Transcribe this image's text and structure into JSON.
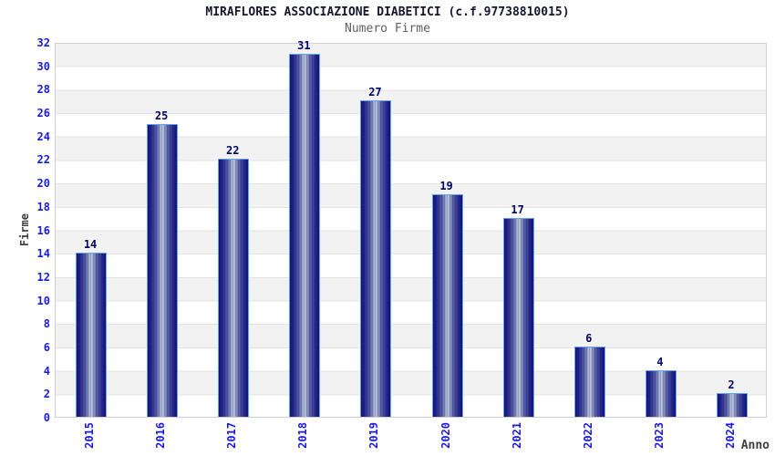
{
  "header": {
    "title": "MIRAFLORES ASSOCIAZIONE DIABETICI (c.f.97738810015)",
    "subtitle": "Numero Firme"
  },
  "chart_data": {
    "type": "bar",
    "title": "MIRAFLORES ASSOCIAZIONE DIABETICI (c.f.97738810015)",
    "subtitle": "Numero Firme",
    "xlabel": "Anno",
    "ylabel": "Firme",
    "categories": [
      "2015",
      "2016",
      "2017",
      "2018",
      "2019",
      "2020",
      "2021",
      "2022",
      "2023",
      "2024"
    ],
    "values": [
      14,
      25,
      22,
      31,
      27,
      19,
      17,
      6,
      4,
      2
    ],
    "ylim": [
      0,
      32
    ],
    "ytick_step": 2,
    "grid": "horizontal-bands",
    "legend": "none",
    "colors": {
      "bar_dark": "#13137a",
      "bar_light": "#b7bfdb",
      "bar_border": "#64a2f5",
      "tick_label": "#1a1ae0",
      "value_label": "#000066",
      "band_gray": "#f2f2f2",
      "band_white": "#ffffff",
      "gridline": "#e3e3e3",
      "frame": "#cfcfcf",
      "title": "#16162e",
      "subtitle": "#5f5f5f",
      "axis_title": "#3d3d3d"
    }
  }
}
